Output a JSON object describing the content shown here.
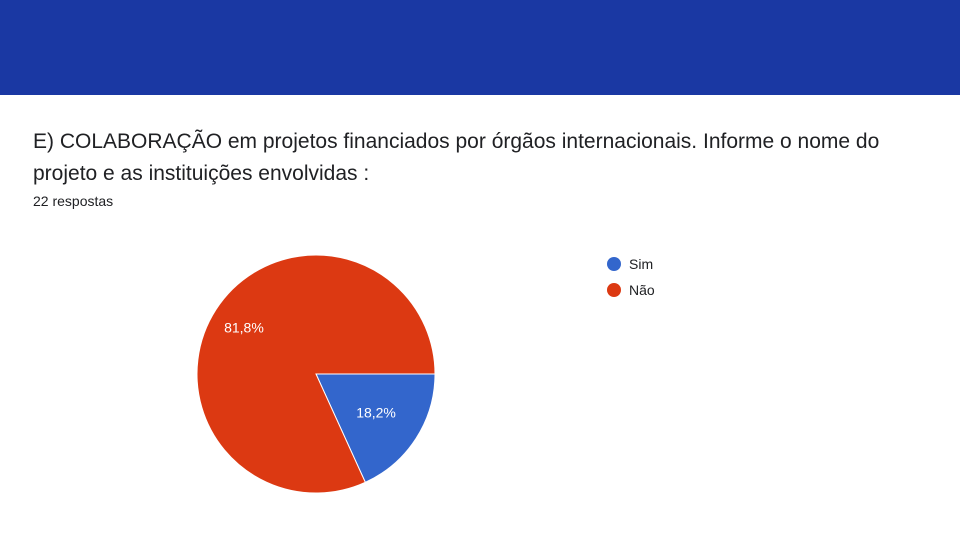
{
  "question": {
    "title": "E) COLABORAÇÃO em projetos financiados por órgãos internacionais. Informe o nome do projeto e as instituições envolvidas :",
    "response_count": "22 respostas"
  },
  "colors": {
    "header": "#1a38a3",
    "sim": "#3366cc",
    "nao": "#dc3912"
  },
  "legend": {
    "position": "right",
    "items": [
      {
        "label": "Sim",
        "color": "#3366cc"
      },
      {
        "label": "Não",
        "color": "#dc3912"
      }
    ]
  },
  "chart_data": {
    "type": "pie",
    "categories": [
      "Sim",
      "Não"
    ],
    "values": [
      18.2,
      81.8
    ],
    "data_labels": [
      "18,2%",
      "81,8%"
    ],
    "colors": [
      "#3366cc",
      "#dc3912"
    ],
    "counts": [
      4,
      18
    ]
  }
}
